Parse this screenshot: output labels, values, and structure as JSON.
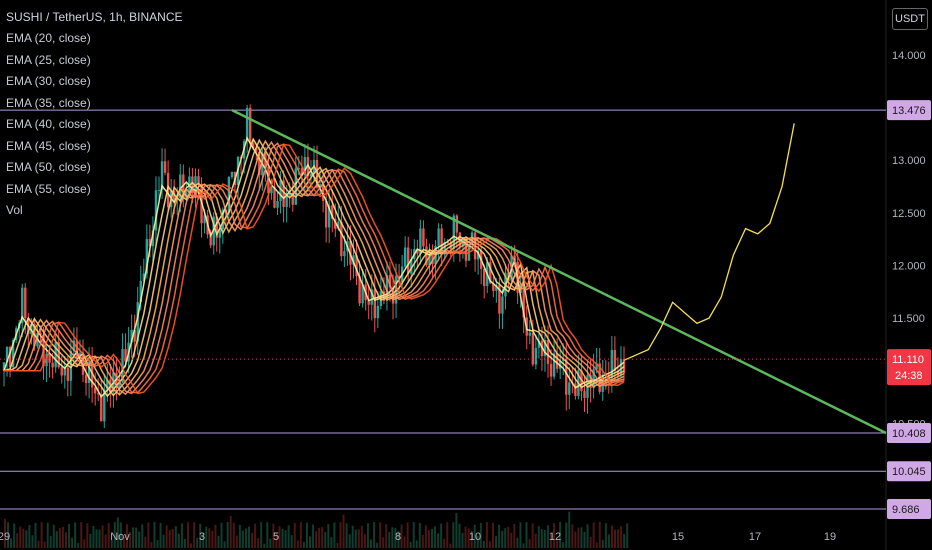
{
  "header": {
    "title": "SUSHI / TetherUS, 1h, BINANCE",
    "currency": "USDT"
  },
  "indicators": [
    "EMA (20, close)",
    "EMA (25, close)",
    "EMA (30, close)",
    "EMA (35, close)",
    "EMA (40, close)",
    "EMA (45, close)",
    "EMA (50, close)",
    "EMA (55, close)",
    "Vol"
  ],
  "colors": {
    "background": "#000000",
    "up": "#26a69a",
    "down": "#ef5350",
    "trendline": "#5cb85c",
    "level_line": "#b39ddb",
    "level_tag": "#d1a8e6",
    "price_tag": "#f23645",
    "projection": "#f5e050",
    "ema_fast": "#fff176",
    "ema_slow": "#ff5722"
  },
  "chart_data": {
    "type": "candlestick",
    "symbol": "SUSHI / TetherUS",
    "interval": "1h",
    "exchange": "BINANCE",
    "x_ticks": [
      "29",
      "Nov",
      "3",
      "5",
      "8",
      "10",
      "12",
      "15",
      "17",
      "19"
    ],
    "y_ticks": [
      "14.000",
      "13.000",
      "12.500",
      "12.000",
      "11.500",
      "10.500"
    ],
    "ylim": [
      9.65,
      14.35
    ],
    "price_levels": [
      {
        "value": 13.476,
        "label": "13.476"
      },
      {
        "value": 10.408,
        "label": "10.408"
      },
      {
        "value": 10.045,
        "label": "10.045"
      },
      {
        "value": 9.686,
        "label": "9.686"
      }
    ],
    "last_price": {
      "value": 11.11,
      "label": "11.110",
      "countdown": "24:38"
    },
    "trendline": {
      "from": {
        "x": "Nov 3",
        "y": 13.476
      },
      "to": {
        "x": "Nov 20",
        "y": 10.408
      }
    },
    "price_path": [
      [
        0,
        11.0
      ],
      [
        3,
        11.6
      ],
      [
        6,
        11.2
      ],
      [
        8,
        11.1
      ],
      [
        10,
        11.0
      ],
      [
        12,
        11.2
      ],
      [
        14,
        10.9
      ],
      [
        16,
        10.7
      ],
      [
        18,
        10.9
      ],
      [
        20,
        11.1
      ],
      [
        22,
        11.6
      ],
      [
        24,
        12.3
      ],
      [
        26,
        12.9
      ],
      [
        28,
        12.6
      ],
      [
        30,
        12.8
      ],
      [
        32,
        12.7
      ],
      [
        34,
        12.2
      ],
      [
        36,
        12.5
      ],
      [
        38,
        12.9
      ],
      [
        40,
        13.3
      ],
      [
        42,
        13.0
      ],
      [
        44,
        12.7
      ],
      [
        46,
        12.6
      ],
      [
        48,
        12.8
      ],
      [
        50,
        13.0
      ],
      [
        52,
        12.7
      ],
      [
        54,
        12.4
      ],
      [
        56,
        12.2
      ],
      [
        58,
        11.9
      ],
      [
        60,
        11.6
      ],
      [
        62,
        11.7
      ],
      [
        64,
        11.8
      ],
      [
        66,
        12.0
      ],
      [
        68,
        12.2
      ],
      [
        70,
        12.1
      ],
      [
        72,
        12.2
      ],
      [
        74,
        12.3
      ],
      [
        76,
        12.2
      ],
      [
        78,
        12.1
      ],
      [
        80,
        11.8
      ],
      [
        82,
        11.7
      ],
      [
        84,
        12.1
      ],
      [
        86,
        11.3
      ],
      [
        88,
        11.2
      ],
      [
        90,
        11.1
      ],
      [
        92,
        11.0
      ],
      [
        94,
        10.8
      ],
      [
        96,
        10.9
      ],
      [
        98,
        10.95
      ],
      [
        100,
        11.0
      ],
      [
        102,
        11.1
      ]
    ],
    "projection_path": [
      [
        102,
        11.1
      ],
      [
        104,
        11.15
      ],
      [
        106,
        11.2
      ],
      [
        108,
        11.4
      ],
      [
        110,
        11.65
      ],
      [
        112,
        11.55
      ],
      [
        114,
        11.45
      ],
      [
        116,
        11.5
      ],
      [
        118,
        11.7
      ],
      [
        120,
        12.1
      ],
      [
        122,
        12.35
      ],
      [
        124,
        12.3
      ],
      [
        126,
        12.4
      ],
      [
        128,
        12.75
      ],
      [
        130,
        13.35
      ]
    ]
  }
}
